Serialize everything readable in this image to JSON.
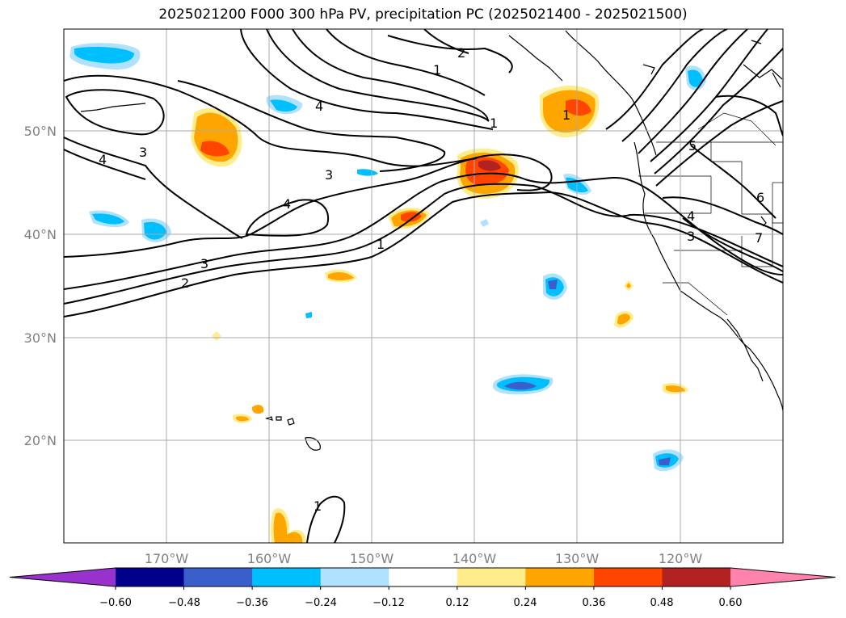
{
  "title": "2025021200 F000 300 hPa PV, precipitation PC (2025021400 - 2025021500)",
  "lat_labels": [
    "50°N",
    "40°N",
    "30°N",
    "20°N"
  ],
  "lon_labels": [
    "170°W",
    "160°W",
    "150°W",
    "140°W",
    "130°W",
    "120°W"
  ],
  "colorbar": {
    "ticks": [
      "−0.60",
      "−0.48",
      "−0.36",
      "−0.24",
      "−0.12",
      "0.12",
      "0.24",
      "0.36",
      "0.48",
      "0.60"
    ],
    "colors": [
      "#9932cc",
      "#00008b",
      "#3a5fcd",
      "#00bfff",
      "#b0e2ff",
      "#ffffff",
      "#ffec8b",
      "#ffa500",
      "#ff4500",
      "#b22222",
      "#ff83ac"
    ]
  },
  "contour_labels": [
    "4",
    "3",
    "4",
    "2",
    "1",
    "1",
    "3",
    "4",
    "3",
    "2",
    "1",
    "1",
    "1",
    "5",
    "6",
    "4",
    "3",
    "7"
  ]
}
